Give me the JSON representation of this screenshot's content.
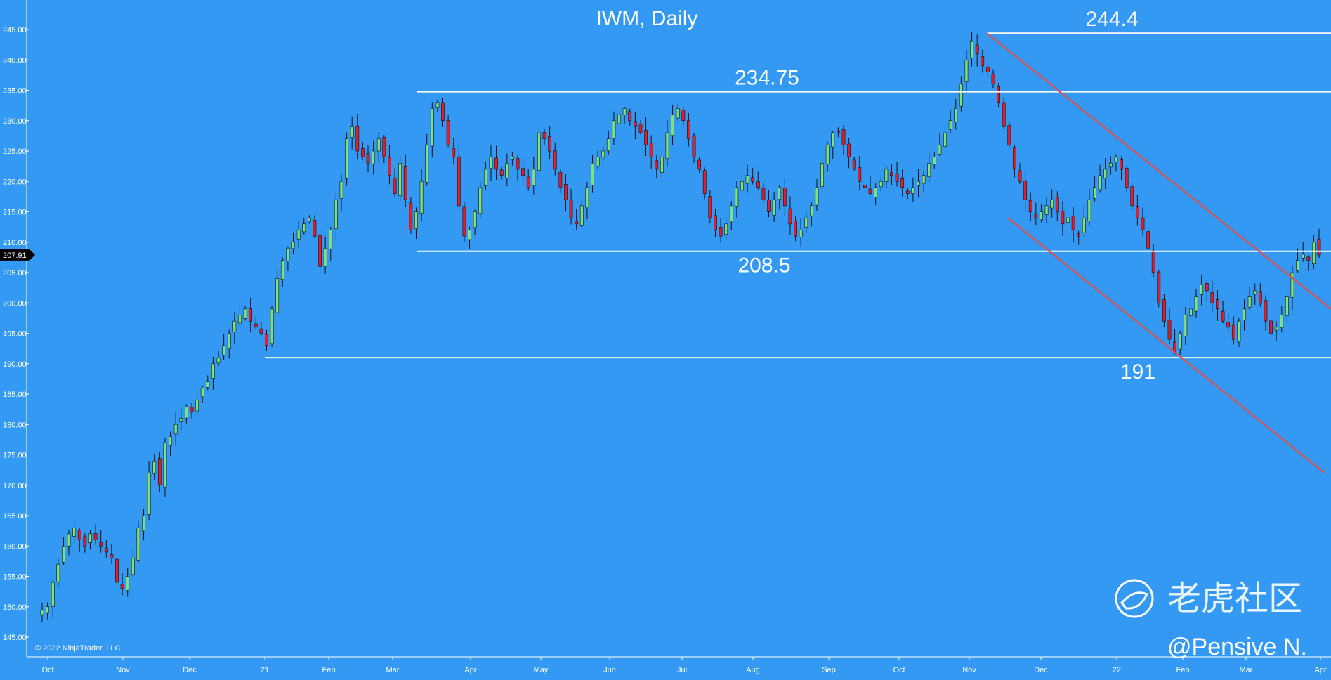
{
  "chart_data": {
    "type": "candlestick",
    "title": "IWM, Daily",
    "ylim": [
      142.5,
      247.5
    ],
    "y_ticks": [
      "245.00",
      "240.00",
      "235.00",
      "230.00",
      "225.00",
      "220.00",
      "215.00",
      "210.00",
      "205.00",
      "200.00",
      "195.00",
      "190.00",
      "185.00",
      "180.00",
      "175.00",
      "170.00",
      "165.00",
      "160.00",
      "155.00",
      "150.00",
      "145.00"
    ],
    "x_ticks": [
      "Oct",
      "Nov",
      "Dec",
      "21",
      "Feb",
      "Mar",
      "Apr",
      "May",
      "Jun",
      "Jul",
      "Aug",
      "Sep",
      "Oct",
      "Nov",
      "Dec",
      "22",
      "Feb",
      "Mar",
      "Apr"
    ],
    "current_price": "207.91",
    "horizontal_levels": [
      {
        "label": "244.4",
        "value": 244.4
      },
      {
        "label": "234.75",
        "value": 234.75
      },
      {
        "label": "208.5",
        "value": 208.5
      },
      {
        "label": "191",
        "value": 191
      }
    ],
    "ohlc_approx": [
      149.5,
      150,
      154,
      157,
      160,
      162,
      163,
      161,
      160,
      162,
      161,
      160,
      159,
      158,
      154,
      153,
      155,
      158,
      163,
      165,
      172,
      174,
      170,
      177,
      178,
      180,
      181,
      183,
      182,
      184,
      186,
      187,
      190,
      191,
      193,
      195,
      197,
      198,
      199,
      197,
      196,
      195,
      193,
      199,
      204,
      207,
      209,
      210,
      212,
      213,
      214,
      211,
      206,
      209,
      212,
      217,
      220,
      227,
      229,
      225,
      224,
      223,
      225,
      227,
      224,
      221,
      218,
      223,
      217,
      212,
      215,
      220,
      226,
      232,
      233,
      230,
      226,
      224,
      216,
      211,
      212,
      215,
      219,
      222,
      224,
      222,
      221,
      223,
      224,
      222,
      221,
      219,
      222,
      228,
      227,
      225,
      222,
      219,
      217,
      214,
      213,
      216,
      219,
      223,
      224,
      225,
      227,
      230,
      231,
      232,
      230,
      229,
      228,
      226,
      224,
      222,
      224,
      228,
      231,
      232,
      230,
      227,
      224,
      222,
      218,
      214,
      212,
      211,
      213,
      216,
      219,
      220,
      221,
      220,
      219,
      217,
      215,
      217,
      219,
      216,
      213,
      211,
      212,
      214,
      216,
      219,
      223,
      226,
      228,
      228,
      226,
      224,
      222,
      220,
      219,
      218,
      219,
      220,
      222,
      221,
      220,
      219,
      218,
      219,
      220,
      221,
      223,
      224,
      226,
      228,
      230,
      232,
      236,
      240,
      243,
      241,
      239,
      238,
      236,
      233,
      229,
      226,
      222,
      220,
      217,
      215,
      214,
      215,
      216,
      217,
      215,
      213,
      214,
      212,
      211,
      214,
      217,
      219,
      221,
      222,
      223,
      224,
      222,
      219,
      216,
      214,
      212,
      209,
      205,
      200,
      197,
      194,
      192,
      195,
      198,
      199,
      201,
      203,
      202,
      200,
      199,
      197,
      196,
      194,
      197,
      199,
      201,
      202,
      200,
      197,
      195,
      196,
      198,
      201,
      205,
      207,
      208,
      207,
      210,
      207.9
    ],
    "channel": {
      "color": "#d2555a",
      "upper": {
        "start": {
          "x_month": "Nov",
          "y": 244.4
        },
        "end": {
          "x_month": "Apr",
          "y": 199
        }
      },
      "lower": {
        "start": {
          "x_month": "Nov",
          "y": 214
        },
        "end": {
          "x_month": "Apr",
          "y": 172
        }
      }
    }
  },
  "annotations": {
    "copyright": "© 2022 NinjaTrader, LLC",
    "watermark": "老虎社区",
    "handle": "@Pensive N."
  },
  "colors": {
    "background": "#3399f3",
    "up_candle": "#7ee07e",
    "down_candle": "#e01e2d",
    "level_line": "#ffffff",
    "channel_line": "#d2555a"
  }
}
